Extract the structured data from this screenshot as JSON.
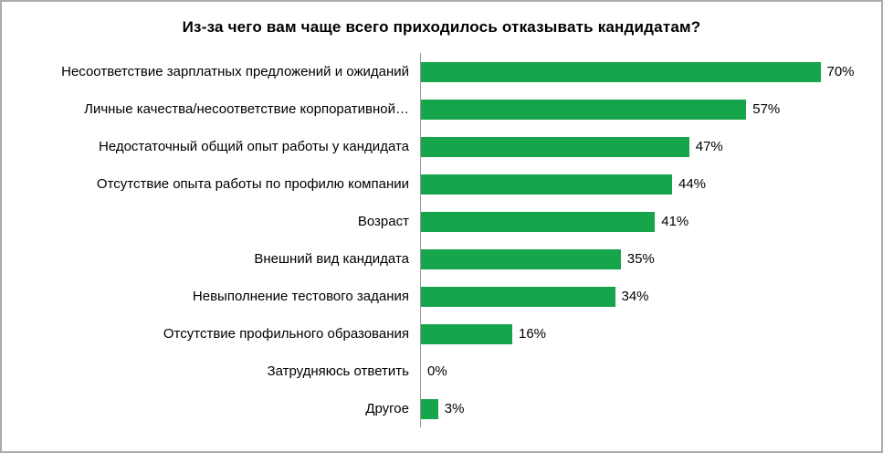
{
  "title": "Из-за чего вам чаще всего приходилось отказывать кандидатам?",
  "colors": {
    "bar": "#17a54c",
    "axis_line": "#9b9b9b",
    "frame_border": "#ababab",
    "text": "#000000",
    "background": "#ffffff"
  },
  "chart_data": {
    "type": "bar",
    "orientation": "horizontal",
    "title": "Из-за чего вам чаще всего приходилось отказывать кандидатам?",
    "categories": [
      "Несоответствие зарплатных предложений и ожиданий",
      "Личные качества/несоответствие  корпоративной…",
      "Недостаточный общий опыт работы у кандидата",
      "Отсутствие опыта работы по профилю компании",
      "Возраст",
      "Внешний вид кандидата",
      "Невыполнение тестового задания",
      "Отсутствие профильного образования",
      "Затрудняюсь ответить",
      "Другое"
    ],
    "values": [
      70,
      57,
      47,
      44,
      41,
      35,
      34,
      16,
      0,
      3
    ],
    "value_suffix": "%",
    "xlabel": "",
    "ylabel": "",
    "xlim": [
      0,
      80
    ],
    "grid": false,
    "legend": false,
    "data_labels": true
  }
}
